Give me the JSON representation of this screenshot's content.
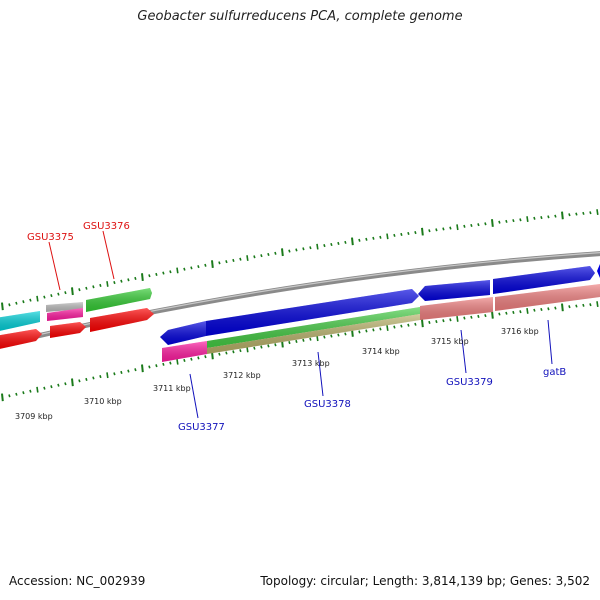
{
  "title": "Geobacter sulfurreducens PCA, complete genome",
  "footer": {
    "accession": "Accession: NC_002939",
    "stats": "Topology: circular; Length: 3,814,139 bp; Genes: 3,502"
  },
  "colors": {
    "backbone": "#888888",
    "tick": "#1a7a1a",
    "label_top": "#dd1111",
    "label_bottom": "#1111bb"
  },
  "kbp_labels": [
    "3709 kbp",
    "3710 kbp",
    "3711 kbp",
    "3712 kbp",
    "3713 kbp",
    "3714 kbp",
    "3715 kbp",
    "3716 kbp"
  ],
  "gene_labels": [
    {
      "id": "gl-1",
      "text": "GSU3375",
      "color": "#dd1111"
    },
    {
      "id": "gl-2",
      "text": "GSU3376",
      "color": "#dd1111"
    },
    {
      "id": "gl-3",
      "text": "GSU3377",
      "color": "#1111bb"
    },
    {
      "id": "gl-4",
      "text": "GSU3378",
      "color": "#1111bb"
    },
    {
      "id": "gl-5",
      "text": "GSU3379",
      "color": "#1111bb"
    },
    {
      "id": "gl-6",
      "text": "gatB",
      "color": "#1111bb"
    }
  ]
}
